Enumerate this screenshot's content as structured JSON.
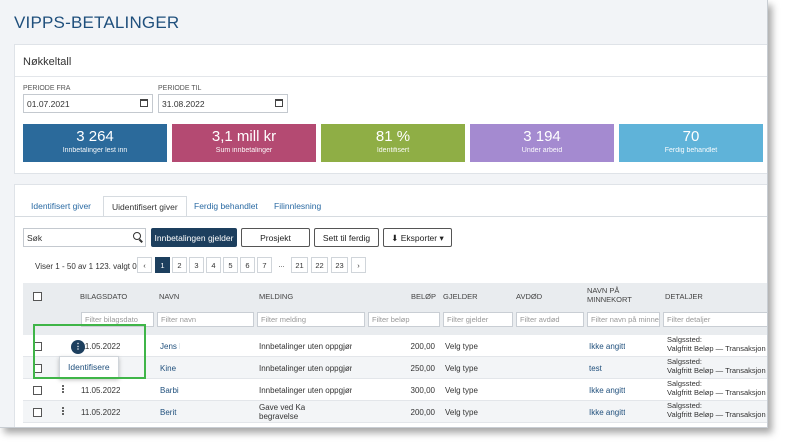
{
  "app": {
    "title": "VIPPS-BETALINGER"
  },
  "key_figures": {
    "title": "Nøkkeltall",
    "period_from": {
      "label": "PERIODE FRA",
      "value": "01.07.2021"
    },
    "period_to": {
      "label": "PERIODE TIL",
      "value": "31.08.2022"
    },
    "kpis": [
      {
        "value": "3 264",
        "label": "Innbetalinger lest inn",
        "color": "#2b6a9b"
      },
      {
        "value": "3,1 mill kr",
        "label": "Sum innbetalinger",
        "color": "#b44a72"
      },
      {
        "value": "81 %",
        "label": "Identifisert",
        "color": "#8fae45"
      },
      {
        "value": "3 194",
        "label": "Under arbeid",
        "color": "#a48ad0"
      },
      {
        "value": "70",
        "label": "Ferdig behandlet",
        "color": "#5fb3d9"
      }
    ]
  },
  "tabs": [
    {
      "label": "Identifisert giver"
    },
    {
      "label": "Uidentifisert giver"
    },
    {
      "label": "Ferdig behandlet"
    },
    {
      "label": "Filinnlesning"
    }
  ],
  "toolbar": {
    "search_value": "Søk",
    "buttons": [
      "Innbetalingen gjelder",
      "Prosjekt",
      "Sett til ferdig",
      "Eksporter"
    ]
  },
  "pagination": {
    "info": "Viser 1 - 50 av 1 123. valgt 0",
    "pages": [
      "1",
      "2",
      "3",
      "4",
      "5",
      "6",
      "7",
      "...",
      "21",
      "22",
      "23"
    ],
    "current_page": "1"
  },
  "table": {
    "columns": [
      "BILAGSDATO",
      "NAVN",
      "MELDING",
      "BELØP",
      "GJELDER",
      "AVDØD",
      "NAVN PÅ MINNEKORT",
      "DETALJER"
    ],
    "filters": [
      "Filter bilagsdato",
      "Filter navn",
      "Filter melding",
      "Filter beløp",
      "Filter gjelder",
      "Filter avdød",
      "Filter navn på minne",
      "Filter detaljer"
    ],
    "rows": [
      {
        "date": "11.05.2022",
        "name": "Jens I",
        "message": "Innbetalinger uten oppgjør",
        "amount": "200,00",
        "regarding": "Velg type",
        "deceased": "",
        "card_name": "Ikke angitt",
        "details": [
          "Salgssted:",
          "Valgfritt Beløp — Transaksjon"
        ]
      },
      {
        "date": "",
        "name": "Kine",
        "message": "Innbetalinger uten oppgjør",
        "amount": "250,00",
        "regarding": "Velg type",
        "deceased": "",
        "card_name": "test",
        "details": [
          "Salgssted:",
          "Valgfritt Beløp — Transaksjon"
        ]
      },
      {
        "date": "11.05.2022",
        "name": "Barbi",
        "message": "Innbetalinger uten oppgjør",
        "amount": "300,00",
        "regarding": "Velg type",
        "deceased": "",
        "card_name": "Ikke angitt",
        "details": [
          "Salgssted:",
          "Valgfritt Beløp — Transaksjon"
        ]
      },
      {
        "date": "11.05.2022",
        "name": "Berit",
        "message": "Gave ved Karl begravelse",
        "amount": "200,00",
        "regarding": "Velg type",
        "deceased": "",
        "card_name": "Ikke angitt",
        "details": [
          "Salgssted:",
          "Valgfritt Beløp — Transaksjon"
        ]
      }
    ]
  },
  "row_menu": {
    "button_glyph": "⋮",
    "item": "Identifisere"
  }
}
